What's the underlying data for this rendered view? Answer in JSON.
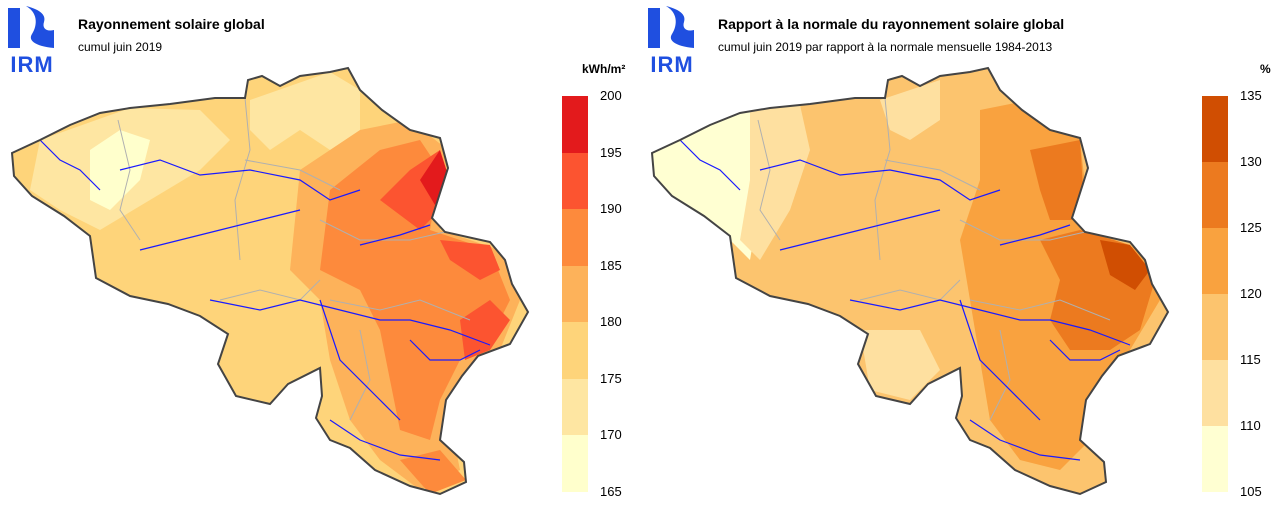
{
  "left_map": {
    "logo_text": "IRM",
    "title": "Rayonnement solaire global",
    "subtitle": "cumul juin 2019",
    "unit": "kWh/m²",
    "legend": {
      "labels": [
        "200",
        "195",
        "190",
        "185",
        "180",
        "175",
        "170",
        "165"
      ],
      "colors": [
        "#e31a1c",
        "#fc5430",
        "#fd8a3c",
        "#fdb25a",
        "#fed47a",
        "#fee6a2",
        "#ffffcc"
      ]
    }
  },
  "right_map": {
    "logo_text": "IRM",
    "title": "Rapport à la normale du rayonnement solaire global",
    "subtitle": "cumul juin 2019 par rapport à la normale mensuelle 1984-2013",
    "unit": "%",
    "legend": {
      "labels": [
        "135",
        "130",
        "125",
        "120",
        "115",
        "110",
        "105"
      ],
      "colors": [
        "#d04e02",
        "#ec7a1f",
        "#f9a23f",
        "#fcc46e",
        "#fee0a0",
        "#ffffd2"
      ]
    }
  },
  "colors": {
    "logo_blue": "#1f4fe0",
    "river": "#1a1aff",
    "border": "#444444",
    "province_lines": "#b0b0b0"
  }
}
